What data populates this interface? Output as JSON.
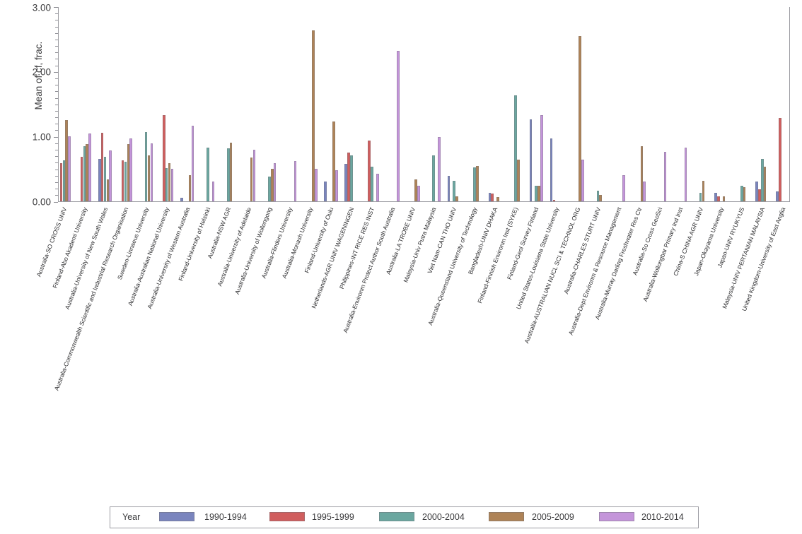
{
  "chart_data": {
    "type": "bar",
    "title": "",
    "ylabel": "Mean of cf, frac.",
    "xlabel": "",
    "ylim": [
      0,
      3
    ],
    "yticks": [
      0,
      1,
      2,
      3
    ],
    "ytick_labels": [
      "0.00",
      "1.00",
      "2.00",
      "3.00"
    ],
    "minor_tick_step": 0.1,
    "grid": "off",
    "legend_position": "bottom",
    "legend_title": "Year",
    "axis_color": "#9b9ba1",
    "categories": [
      "Australia-SO CROSS UNIV",
      "Finland-Abo Akademi University",
      "Australia-University of New South Wales",
      "Australia-Commonwealth Scientific and Industrial Research Organisation",
      "Sweden-Linnaeus University",
      "Australia-Australian National University",
      "Australia-University of Western Australia",
      "Finland-University of Helsinki",
      "Australia-NSW AGR",
      "Australia-University of Adelaide",
      "Australia-University of Wollongong",
      "Australia-Flinders University",
      "Australia-Monash University",
      "Finland-University of Oulu",
      "Netherlands-AGR UNIV WAGENINGEN",
      "Philippines-INT RICE RES INST",
      "Australia-Environm Protect Author South Australia",
      "Australia-LA TROBE UNIV",
      "Malaysia-Univ Putra Malaysia",
      "Viet Nam-CAN THO UNIV",
      "Australia-Queensland University of Technology",
      "Bangladesh-UNIV DHAKA",
      "Finland-Finnish Environm Inst (SYKE)",
      "Finland-Geol Survey Finland",
      "United States-Louisiana State University",
      "Australia-AUSTRALIAN NUCL SCI & TECHNOL ORG",
      "Australia-CHARLES STURT UNIV",
      "Australia-Dept Environm & Resource Management",
      "Australia-Murray Darling Freshwater Res Ctr",
      "Australia-So Cross GeoSci",
      "Australia-Wollongbar Primary Ind Inst",
      "China-S CHINA AGR UNIV",
      "Japan-Okayama University",
      "Japan-UNIV RYUKYUS",
      "Malaysia-UNIV PERTANIAN MALAYSIA",
      "United Kingdom-University of East Anglia"
    ],
    "series": [
      {
        "name": "1990-1994",
        "color": "#7A85BE",
        "values": [
          null,
          null,
          0.66,
          null,
          null,
          null,
          0.06,
          null,
          null,
          null,
          null,
          null,
          null,
          0.31,
          0.58,
          null,
          null,
          null,
          null,
          0.4,
          null,
          0.14,
          null,
          1.27,
          0.97,
          null,
          null,
          null,
          null,
          null,
          null,
          null,
          0.14,
          null,
          0.31,
          0.16
        ]
      },
      {
        "name": "1995-1999",
        "color": "#D05E5E",
        "values": [
          0.59,
          0.69,
          1.06,
          0.64,
          null,
          1.33,
          null,
          null,
          null,
          null,
          null,
          null,
          null,
          null,
          0.76,
          0.94,
          null,
          null,
          null,
          null,
          null,
          0.12,
          null,
          null,
          0.03,
          null,
          null,
          null,
          null,
          null,
          null,
          null,
          0.08,
          null,
          0.19,
          1.29
        ]
      },
      {
        "name": "2000-2004",
        "color": "#6BA7A0",
        "values": [
          0.64,
          0.86,
          0.69,
          0.62,
          1.07,
          0.52,
          null,
          0.83,
          0.82,
          null,
          0.39,
          null,
          null,
          null,
          0.71,
          0.54,
          null,
          null,
          0.71,
          0.32,
          0.53,
          null,
          1.64,
          0.24,
          null,
          null,
          0.17,
          null,
          null,
          null,
          null,
          0.14,
          null,
          0.24,
          0.66,
          null
        ]
      },
      {
        "name": "2005-2009",
        "color": "#AE8357",
        "values": [
          1.26,
          0.89,
          0.34,
          0.89,
          0.71,
          0.59,
          0.41,
          null,
          0.91,
          0.68,
          0.51,
          null,
          2.64,
          1.24,
          null,
          null,
          null,
          0.34,
          null,
          0.08,
          0.55,
          0.07,
          0.65,
          0.24,
          null,
          2.55,
          0.1,
          null,
          0.85,
          null,
          null,
          0.32,
          0.08,
          0.22,
          0.54,
          null
        ]
      },
      {
        "name": "2010-2014",
        "color": "#C495DA",
        "values": [
          1.01,
          1.05,
          0.79,
          0.98,
          0.9,
          0.51,
          1.17,
          0.31,
          null,
          0.8,
          0.59,
          0.63,
          0.51,
          0.48,
          null,
          0.43,
          2.33,
          0.24,
          1.0,
          null,
          null,
          null,
          null,
          1.33,
          null,
          0.65,
          null,
          0.41,
          0.31,
          0.77,
          0.83,
          null,
          null,
          null,
          null,
          null
        ]
      }
    ]
  }
}
